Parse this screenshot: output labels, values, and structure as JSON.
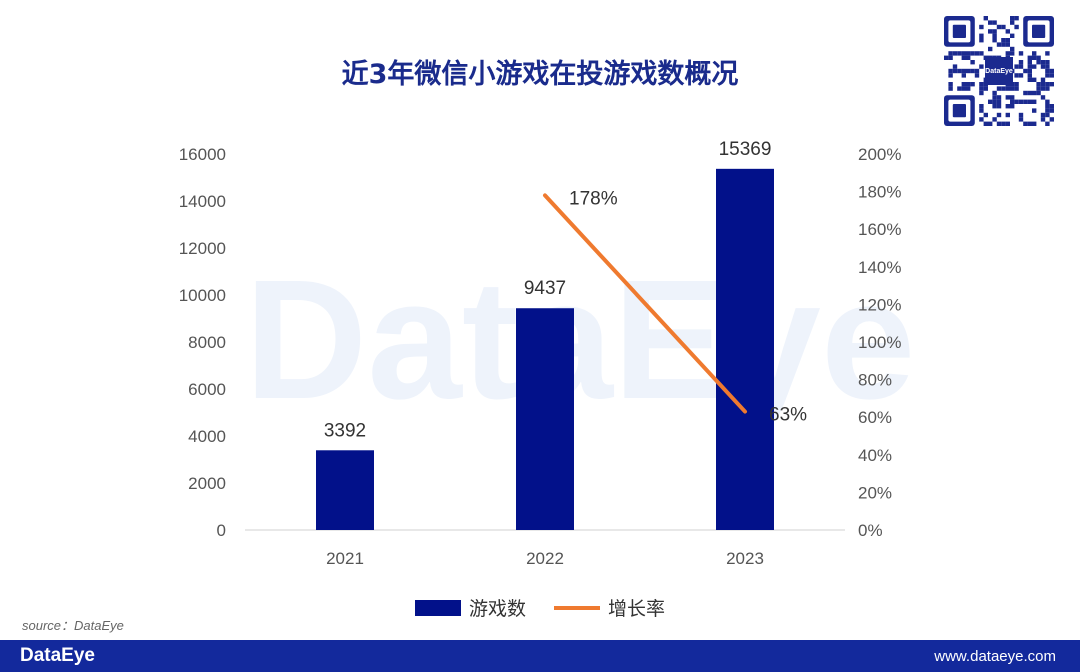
{
  "title": "近3年微信小游戏在投游戏数概况",
  "source": "source：DataEye",
  "footer": {
    "logo": "DataEye",
    "url": "www.dataeye.com"
  },
  "qr": {
    "logo_text": "DataEye"
  },
  "watermark": "DataEye",
  "colors": {
    "bar": "#02118a",
    "line": "#ef7a2f",
    "title": "#1a2b8c",
    "footer": "#13299c"
  },
  "chart_data": {
    "type": "bar",
    "title": "近3年微信小游戏在投游戏数概况",
    "categories": [
      "2021",
      "2022",
      "2023"
    ],
    "series": [
      {
        "name": "游戏数",
        "type": "bar",
        "axis": "left",
        "values": [
          3392,
          9437,
          15369
        ],
        "labels": [
          "3392",
          "9437",
          "15369"
        ]
      },
      {
        "name": "增长率",
        "type": "line",
        "axis": "right",
        "values": [
          null,
          178,
          63
        ],
        "labels": [
          "",
          "178%",
          "63%"
        ]
      }
    ],
    "y_left": {
      "min": 0,
      "max": 16000,
      "ticks": [
        "0",
        "2000",
        "4000",
        "6000",
        "8000",
        "10000",
        "12000",
        "14000",
        "16000"
      ]
    },
    "y_right": {
      "min": 0,
      "max": 200,
      "ticks": [
        "0%",
        "20%",
        "40%",
        "60%",
        "80%",
        "100%",
        "120%",
        "140%",
        "160%",
        "180%",
        "200%"
      ]
    },
    "grid": false,
    "legend": "bottom"
  }
}
